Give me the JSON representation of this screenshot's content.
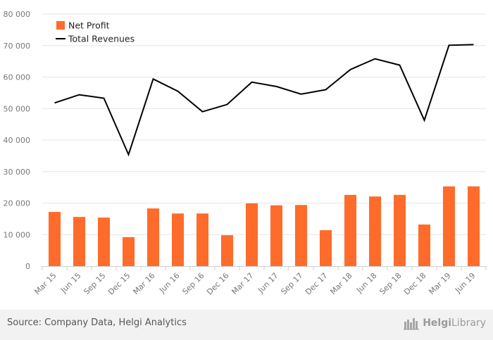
{
  "chart_data": {
    "type": "bar",
    "categories": [
      "Mar 15",
      "Jun 15",
      "Sep 15",
      "Dec 15",
      "Mar 16",
      "Jun 16",
      "Sep 16",
      "Dec 16",
      "Mar 17",
      "Jun 17",
      "Sep 17",
      "Dec 17",
      "Mar 18",
      "Jun 18",
      "Sep 18",
      "Dec 18",
      "Mar 19",
      "Jun 19"
    ],
    "series": [
      {
        "name": "Net Profit",
        "type": "bar",
        "color": "#ff6b2b",
        "values": [
          17200,
          15600,
          15400,
          9200,
          18300,
          16700,
          16700,
          9800,
          19900,
          19300,
          19400,
          11400,
          22600,
          22100,
          22600,
          13200,
          25300,
          25300
        ]
      },
      {
        "name": "Total Revenues",
        "type": "line",
        "color": "#000000",
        "values": [
          51800,
          54400,
          53300,
          35400,
          59400,
          55500,
          49000,
          51300,
          58400,
          57000,
          54600,
          56000,
          62400,
          65800,
          63800,
          46300,
          70100,
          70300
        ]
      }
    ],
    "ylim": [
      0,
      80000
    ],
    "yticks": [
      0,
      10000,
      20000,
      30000,
      40000,
      50000,
      60000,
      70000,
      80000
    ],
    "ytick_labels": [
      "0",
      "10 000",
      "20 000",
      "30 000",
      "40 000",
      "50 000",
      "60 000",
      "70 000",
      "80 000"
    ],
    "grid": true,
    "legend_position": "top-left"
  },
  "footer": {
    "source": "Source: Company Data, Helgi Analytics",
    "brand_part1": "Helgi",
    "brand_part2": "Library",
    "logo_icon": "helgi-library-logo-icon"
  }
}
